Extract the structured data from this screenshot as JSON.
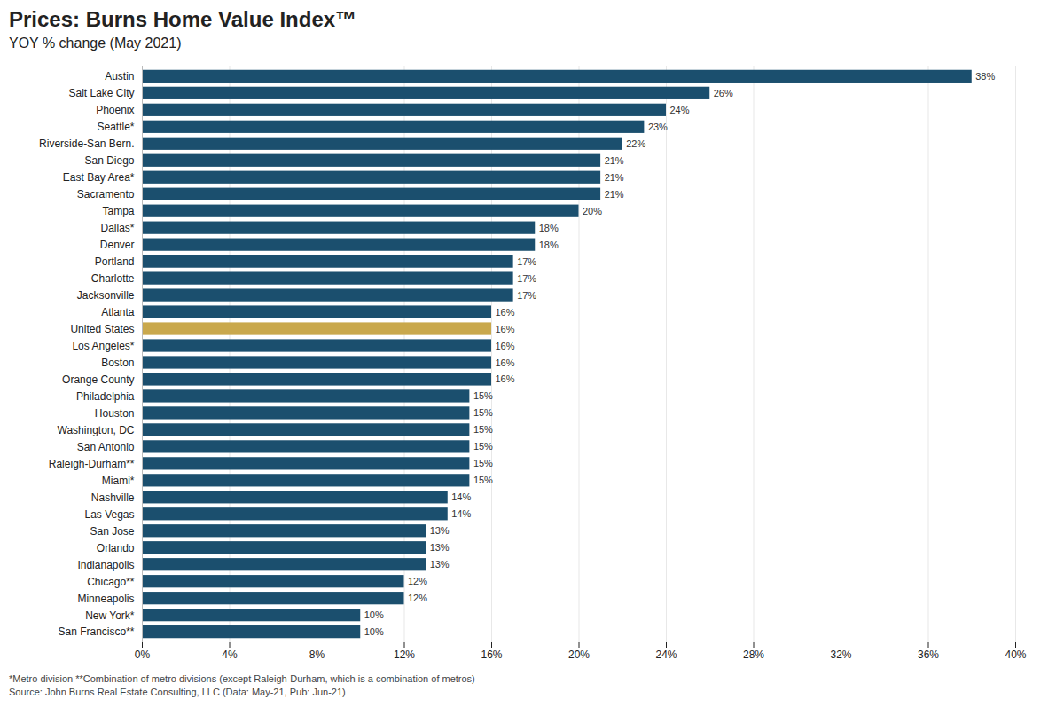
{
  "chart_data": {
    "type": "bar",
    "orientation": "horizontal",
    "title": "Prices: Burns Home Value Index™",
    "subtitle": "YOY % change (May 2021)",
    "annotations": [
      "*Metro division  **Combination of metro divisions (except Raleigh-Durham,  which is a combination of metros)",
      "Source: John Burns Real Estate Consulting, LLC  (Data: May-21, Pub: Jun-21)"
    ],
    "categories": [
      "Austin",
      "Salt Lake City",
      "Phoenix",
      "Seattle*",
      "Riverside-San Bern.",
      "San Diego",
      "East Bay Area*",
      "Sacramento",
      "Tampa",
      "Dallas*",
      "Denver",
      "Portland",
      "Charlotte",
      "Jacksonville",
      "Atlanta",
      "United States",
      "Los Angeles*",
      "Boston",
      "Orange County",
      "Philadelphia",
      "Houston",
      "Washington, DC",
      "San Antonio",
      "Raleigh-Durham**",
      "Miami*",
      "Nashville",
      "Las Vegas",
      "San Jose",
      "Orlando",
      "Indianapolis",
      "Chicago**",
      "Minneapolis",
      "New York*",
      "San Francisco**"
    ],
    "values": [
      38,
      26,
      24,
      23,
      22,
      21,
      21,
      21,
      20,
      18,
      18,
      17,
      17,
      17,
      16,
      16,
      16,
      16,
      16,
      15,
      15,
      15,
      15,
      15,
      15,
      14,
      14,
      13,
      13,
      13,
      12,
      12,
      10,
      10
    ],
    "value_labels": [
      "38%",
      "26%",
      "24%",
      "23%",
      "22%",
      "21%",
      "21%",
      "21%",
      "20%",
      "18%",
      "18%",
      "17%",
      "17%",
      "17%",
      "16%",
      "16%",
      "16%",
      "16%",
      "16%",
      "15%",
      "15%",
      "15%",
      "15%",
      "15%",
      "15%",
      "14%",
      "14%",
      "13%",
      "13%",
      "13%",
      "12%",
      "12%",
      "10%",
      "10%"
    ],
    "colors": [
      "#1b4f6e",
      "#1b4f6e",
      "#1b4f6e",
      "#1b4f6e",
      "#1b4f6e",
      "#1b4f6e",
      "#1b4f6e",
      "#1b4f6e",
      "#1b4f6e",
      "#1b4f6e",
      "#1b4f6e",
      "#1b4f6e",
      "#1b4f6e",
      "#1b4f6e",
      "#1b4f6e",
      "#c9a84c",
      "#1b4f6e",
      "#1b4f6e",
      "#1b4f6e",
      "#1b4f6e",
      "#1b4f6e",
      "#1b4f6e",
      "#1b4f6e",
      "#1b4f6e",
      "#1b4f6e",
      "#1b4f6e",
      "#1b4f6e",
      "#1b4f6e",
      "#1b4f6e",
      "#1b4f6e",
      "#1b4f6e",
      "#1b4f6e",
      "#1b4f6e",
      "#1b4f6e"
    ],
    "data_labels": true,
    "xlim": [
      0,
      40
    ],
    "xticks": [
      {
        "value": 0,
        "label": "0%"
      },
      {
        "value": 4,
        "label": "4%"
      },
      {
        "value": 8,
        "label": "8%"
      },
      {
        "value": 12,
        "label": "12%"
      },
      {
        "value": 16,
        "label": "16%"
      },
      {
        "value": 20,
        "label": "20%"
      },
      {
        "value": 24,
        "label": "24%"
      },
      {
        "value": 28,
        "label": "28%"
      },
      {
        "value": 32,
        "label": "32%"
      },
      {
        "value": 36,
        "label": "36%"
      },
      {
        "value": 40,
        "label": "40%"
      }
    ],
    "grid": true
  }
}
